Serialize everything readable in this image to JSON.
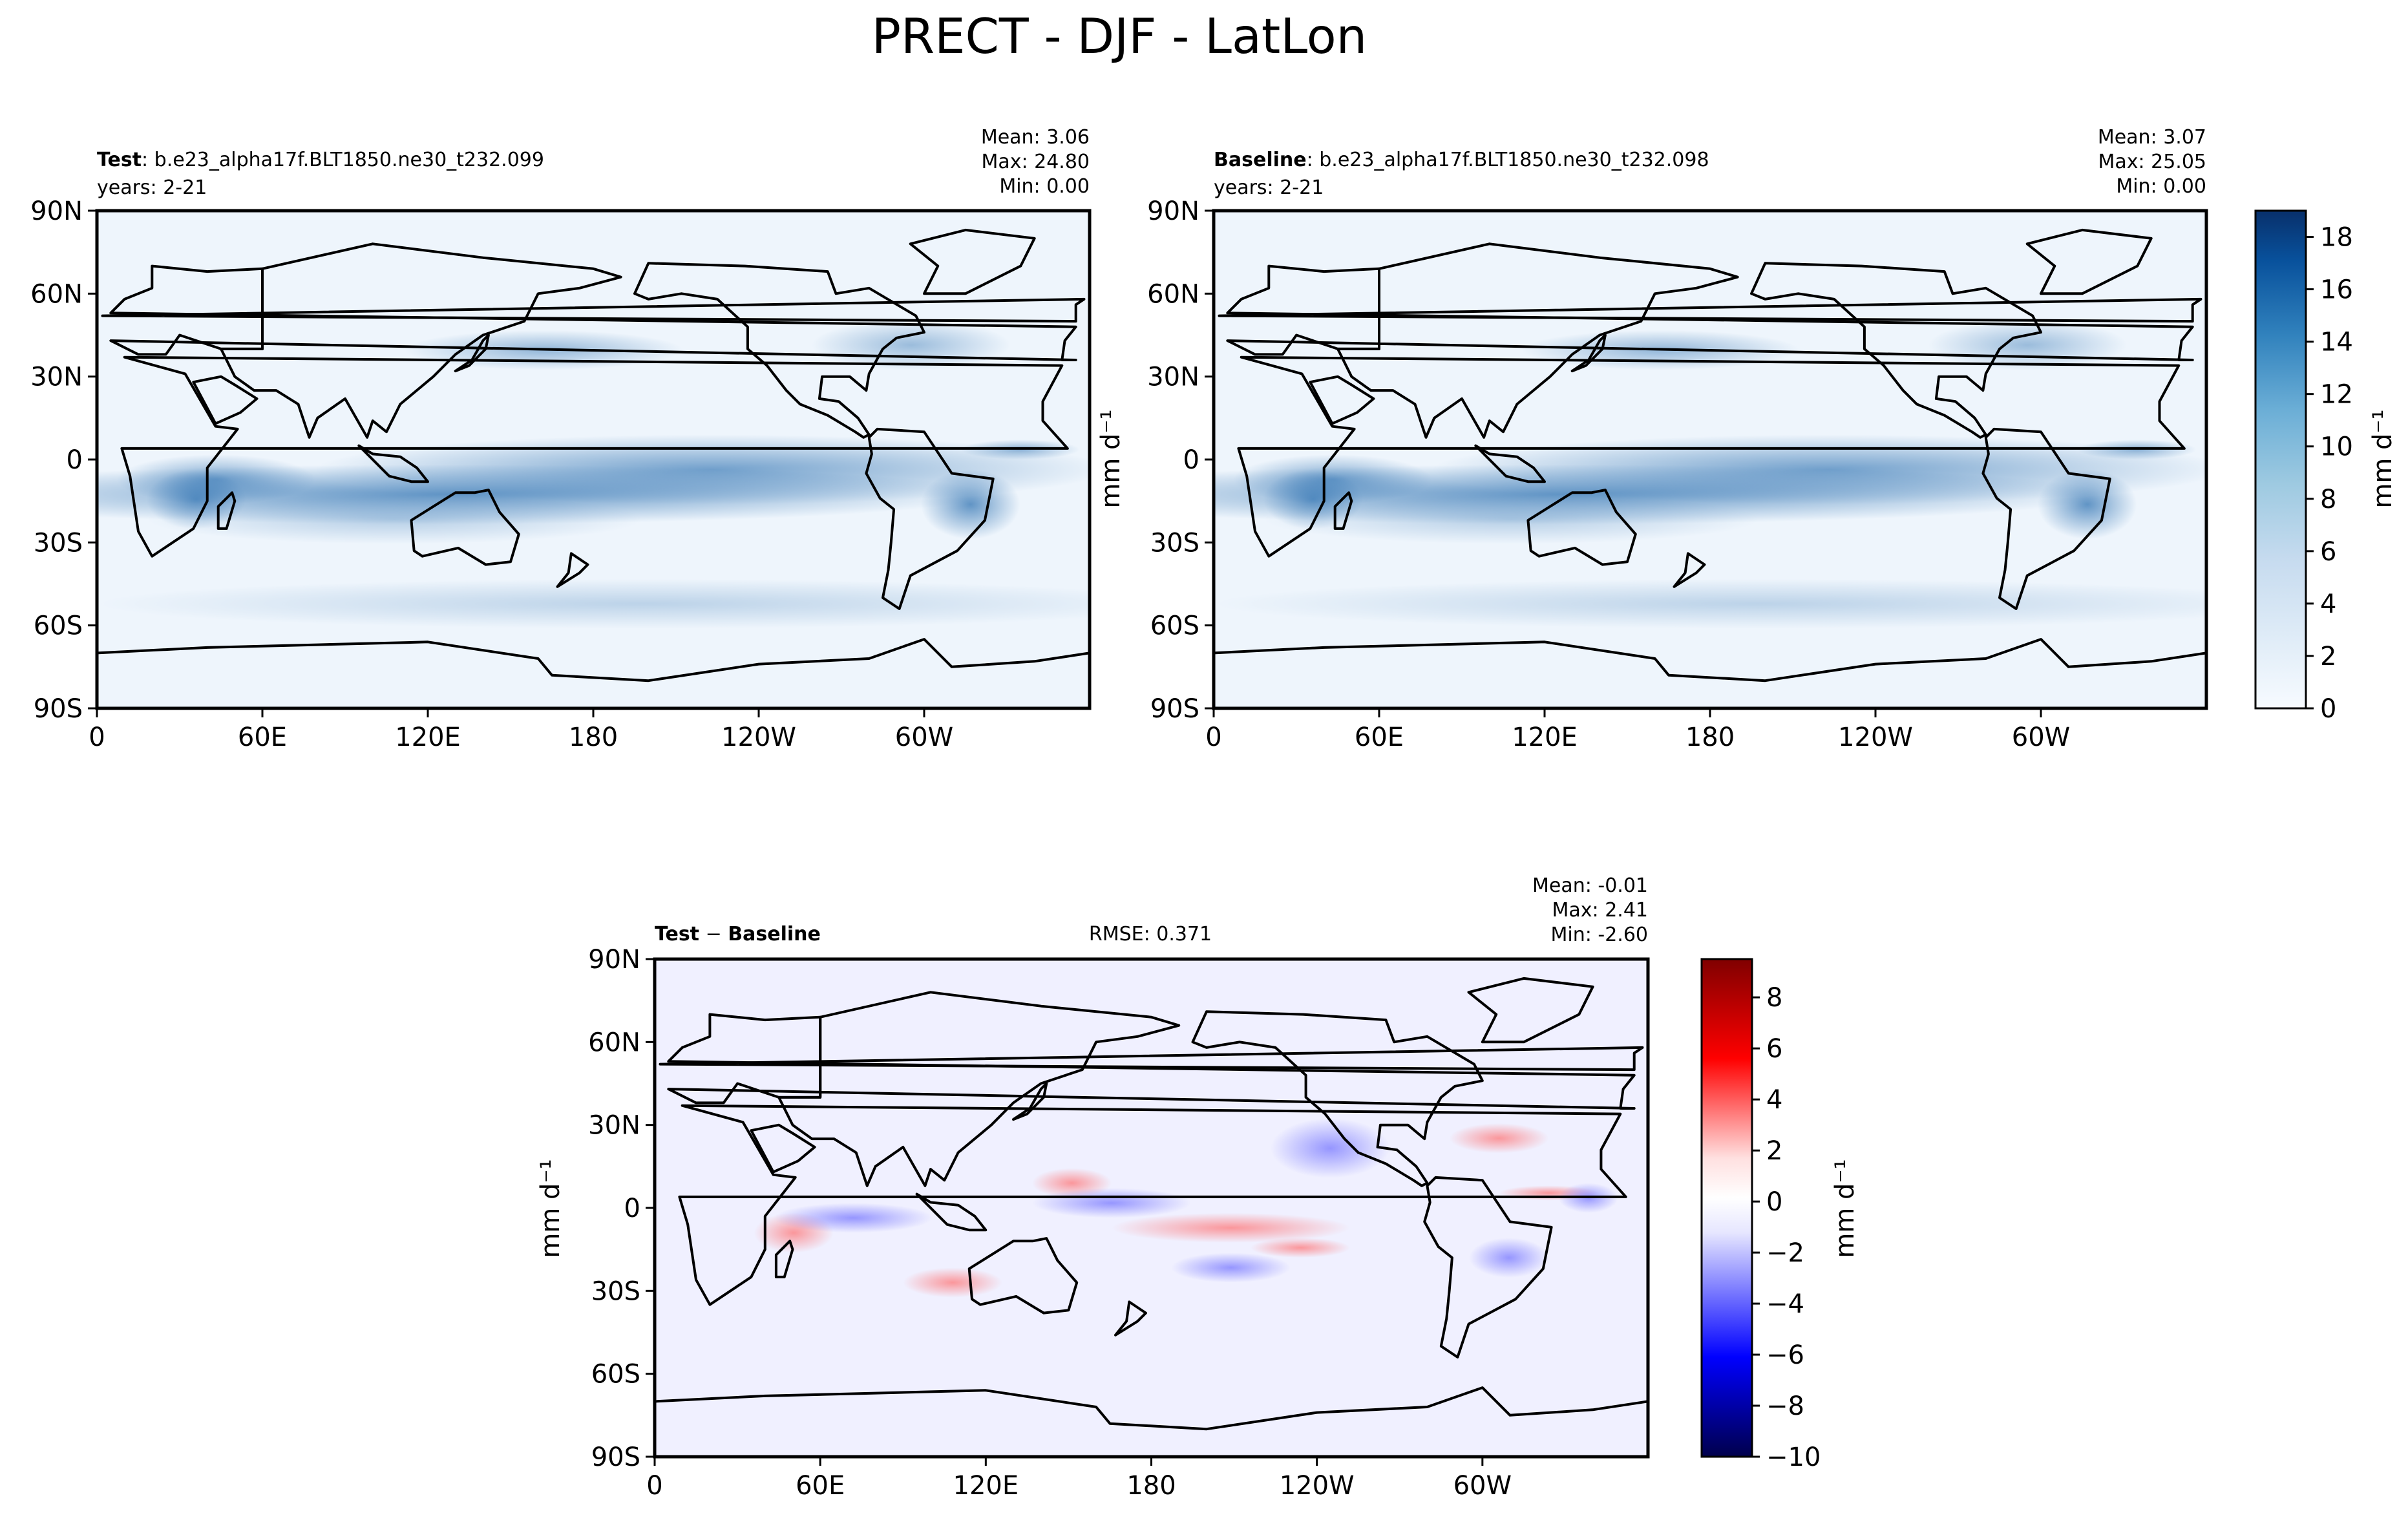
{
  "figure": {
    "title": "PRECT - DJF - LatLon"
  },
  "chart_data": [
    {
      "type": "heatmap",
      "role": "test",
      "name_bold": "Test",
      "name_rest": ": b.e23_alpha17f.BLT1850.ne30_t232.099",
      "years": "years: 2-21",
      "stats": [
        "Mean:  3.06",
        "Max: 24.80",
        "Min:  0.00"
      ],
      "xticks": [
        "0",
        "60E",
        "120E",
        "180",
        "120W",
        "60W"
      ],
      "yticks": [
        "90N",
        "60N",
        "30N",
        "0",
        "30S",
        "60S",
        "90S"
      ],
      "xlim": [
        0,
        360
      ],
      "ylim": [
        -90,
        90
      ],
      "colormap": "Blues",
      "value_range": [
        0,
        19
      ]
    },
    {
      "type": "heatmap",
      "role": "baseline",
      "name_bold": "Baseline",
      "name_rest": ": b.e23_alpha17f.BLT1850.ne30_t232.098",
      "years": "years: 2-21",
      "stats": [
        "Mean:  3.07",
        "Max: 25.05",
        "Min:  0.00"
      ],
      "xticks": [
        "0",
        "60E",
        "120E",
        "180",
        "120W",
        "60W"
      ],
      "yticks": [
        "90N",
        "60N",
        "30N",
        "0",
        "30S",
        "60S",
        "90S"
      ],
      "xlim": [
        0,
        360
      ],
      "ylim": [
        -90,
        90
      ],
      "colormap": "Blues",
      "value_range": [
        0,
        19
      ]
    },
    {
      "type": "heatmap",
      "role": "difference",
      "name_bold": "Test",
      "name_rest": " − ",
      "name_bold2": "Baseline",
      "rmse": "RMSE: 0.371",
      "stats": [
        "Mean: -0.01",
        "Max:  2.41",
        "Min: -2.60"
      ],
      "xticks": [
        "0",
        "60E",
        "120E",
        "180",
        "120W",
        "60W"
      ],
      "yticks": [
        "90N",
        "60N",
        "30N",
        "0",
        "30S",
        "60S",
        "90S"
      ],
      "xlim": [
        0,
        360
      ],
      "ylim": [
        -90,
        90
      ],
      "colormap": "seismic",
      "value_range": [
        -10,
        9.5
      ]
    }
  ],
  "colorbars": {
    "main": {
      "label": "mm d⁻¹",
      "ticks": [
        0,
        2,
        4,
        6,
        8,
        10,
        12,
        14,
        16,
        18
      ],
      "range": [
        0,
        19
      ]
    },
    "diff": {
      "label": "mm d⁻¹",
      "ticks": [
        -10,
        -8,
        -6,
        -4,
        -2,
        0,
        2,
        4,
        6,
        8
      ],
      "tick_text": [
        "−10",
        "−8",
        "−6",
        "−4",
        "−2",
        "0",
        "2",
        "4",
        "6",
        "8"
      ],
      "range": [
        -10,
        9.5
      ]
    }
  },
  "ylabel_between": "mm d⁻¹",
  "ylabel_diff": "mm d⁻¹"
}
